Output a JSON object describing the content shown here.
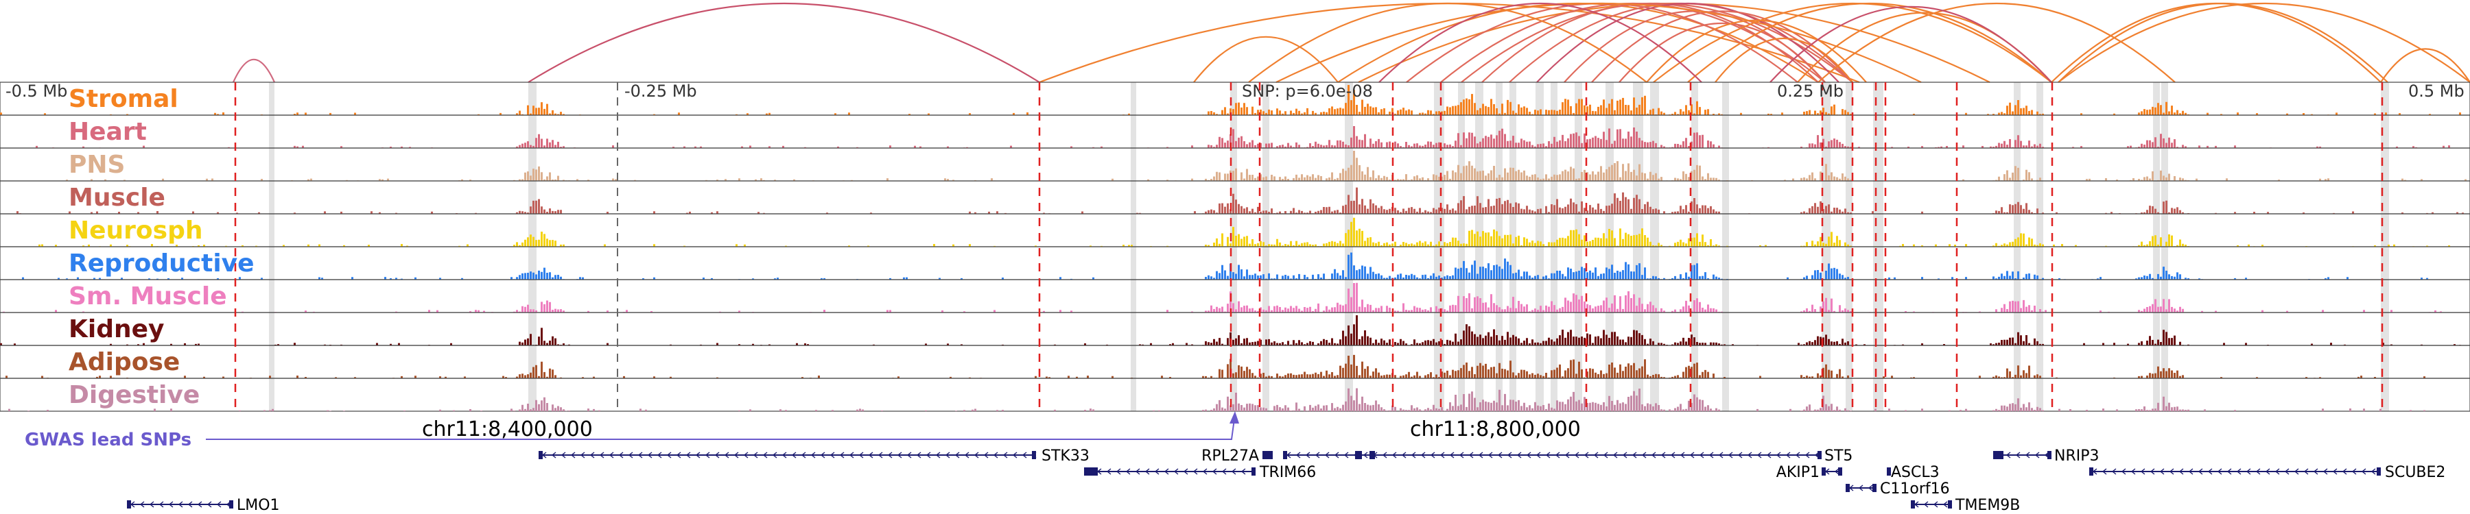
{
  "region": {
    "chrom": "chr11",
    "start_mb": -0.5,
    "end_mb": 0.5,
    "coord_labels": [
      "chr11:8,400,000",
      "chr11:8,800,000"
    ],
    "axis_labels": [
      "-0.5 Mb",
      "-0.25 Mb",
      "0.25 Mb",
      "0.5 Mb"
    ]
  },
  "snp_label": "SNP: p=6.0e-08",
  "gwas_label": "GWAS lead SNPs",
  "colors": {
    "Stromal": "#f58220",
    "Heart": "#d86a7e",
    "PNS": "#dcb08f",
    "Muscle": "#c0605a",
    "Neurosph": "#f5d312",
    "Reproductive": "#2f80ed",
    "Sm. Muscle": "#ee7fbf",
    "Kidney": "#6b0f0f",
    "Adipose": "#a8532b",
    "Digestive": "#c58aa6",
    "highlight": "#b0b0b0",
    "dashed": "#e02020",
    "gwas": "#6a5acd",
    "gene": "#1a1a6e"
  },
  "tracks": [
    "Stromal",
    "Heart",
    "PNS",
    "Muscle",
    "Neurosph",
    "Reproductive",
    "Sm. Muscle",
    "Kidney",
    "Adipose",
    "Digestive"
  ],
  "genes": [
    {
      "name": "STK33"
    },
    {
      "name": "RPL27A"
    },
    {
      "name": "TRIM66"
    },
    {
      "name": "ST5"
    },
    {
      "name": "AKIP1"
    },
    {
      "name": "ASCL3"
    },
    {
      "name": "C11orf16"
    },
    {
      "name": "TMEM9B"
    },
    {
      "name": "NRIP3"
    },
    {
      "name": "SCUBE2"
    },
    {
      "name": "LMO1"
    }
  ]
}
